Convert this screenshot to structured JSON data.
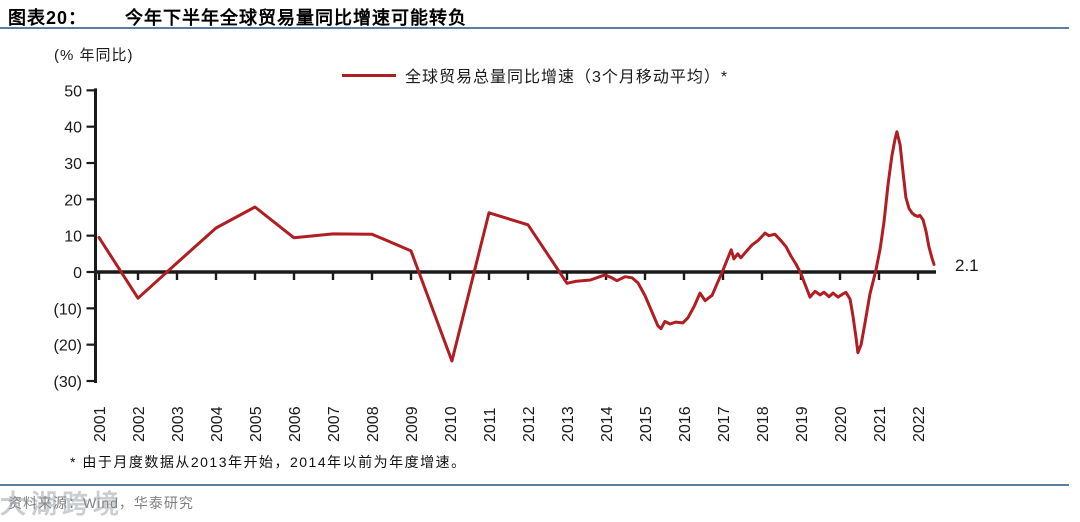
{
  "header": {
    "label": "图表20：",
    "title": "今年下半年全球贸易量同比增速可能转负"
  },
  "axis_unit": "(% 年同比)",
  "legend": {
    "label": "全球贸易总量同比增速（3个月移动平均）*"
  },
  "footnote": "* 由于月度数据从2013年开始，2014年以前为年度增速。",
  "source": "资料来源：Wind，华泰研究",
  "watermark": "大湖跨境",
  "colors": {
    "line": "#B01E23",
    "axis": "#1A1A1A",
    "rule": "#5B7FA3",
    "source_text": "#7F7F7F"
  },
  "chart_data": {
    "type": "line",
    "title": "今年下半年全球贸易量同比增速可能转负",
    "ylabel": "(% 年同比)",
    "ylim": [
      -30,
      50
    ],
    "grid": false,
    "legend_position": "top-center",
    "yticks": [
      {
        "v": 50,
        "label": "50"
      },
      {
        "v": 40,
        "label": "40"
      },
      {
        "v": 30,
        "label": "30"
      },
      {
        "v": 20,
        "label": "20"
      },
      {
        "v": 10,
        "label": "10"
      },
      {
        "v": 0,
        "label": "0"
      },
      {
        "v": -10,
        "label": "(10)"
      },
      {
        "v": -20,
        "label": "(20)"
      },
      {
        "v": -30,
        "label": "(30)"
      }
    ],
    "x_years": [
      2001,
      2002,
      2003,
      2004,
      2005,
      2006,
      2007,
      2008,
      2009,
      2010,
      2011,
      2012,
      2013,
      2014,
      2015,
      2016,
      2017,
      2018,
      2019,
      2020,
      2021,
      2022
    ],
    "end_label": "2.1",
    "series": [
      {
        "name": "全球贸易总量同比增速（3个月移动平均）*",
        "color": "#B01E23",
        "points": [
          [
            2001.0,
            9.5
          ],
          [
            2002.0,
            -7.2
          ],
          [
            2003.0,
            2.5
          ],
          [
            2004.0,
            12.1
          ],
          [
            2005.0,
            17.9
          ],
          [
            2006.0,
            9.4
          ],
          [
            2007.0,
            10.5
          ],
          [
            2008.0,
            10.4
          ],
          [
            2009.0,
            5.8
          ],
          [
            2010.05,
            -24.5
          ],
          [
            2011.0,
            16.3
          ],
          [
            2012.0,
            13.0
          ],
          [
            2013.0,
            -3.1
          ],
          [
            2013.21,
            -2.6
          ],
          [
            2013.6,
            -2.2
          ],
          [
            2013.97,
            -0.8
          ],
          [
            2014.15,
            -1.6
          ],
          [
            2014.28,
            -2.4
          ],
          [
            2014.49,
            -1.3
          ],
          [
            2014.67,
            -1.6
          ],
          [
            2014.82,
            -3.0
          ],
          [
            2015.0,
            -6.5
          ],
          [
            2015.18,
            -11.0
          ],
          [
            2015.33,
            -14.8
          ],
          [
            2015.41,
            -15.6
          ],
          [
            2015.51,
            -13.6
          ],
          [
            2015.64,
            -14.3
          ],
          [
            2015.79,
            -13.8
          ],
          [
            2015.97,
            -14.0
          ],
          [
            2016.1,
            -12.6
          ],
          [
            2016.26,
            -9.5
          ],
          [
            2016.41,
            -5.8
          ],
          [
            2016.54,
            -7.9
          ],
          [
            2016.72,
            -6.4
          ],
          [
            2016.87,
            -2.7
          ],
          [
            2017.0,
            0.5
          ],
          [
            2017.1,
            3.2
          ],
          [
            2017.21,
            6.1
          ],
          [
            2017.28,
            3.6
          ],
          [
            2017.38,
            5.0
          ],
          [
            2017.46,
            3.9
          ],
          [
            2017.59,
            5.6
          ],
          [
            2017.74,
            7.4
          ],
          [
            2017.9,
            8.7
          ],
          [
            2018.08,
            10.7
          ],
          [
            2018.18,
            10.0
          ],
          [
            2018.33,
            10.4
          ],
          [
            2018.49,
            8.6
          ],
          [
            2018.62,
            6.9
          ],
          [
            2018.74,
            4.4
          ],
          [
            2018.87,
            2.2
          ],
          [
            2019.0,
            -0.5
          ],
          [
            2019.1,
            -3.3
          ],
          [
            2019.23,
            -6.9
          ],
          [
            2019.36,
            -5.3
          ],
          [
            2019.49,
            -6.3
          ],
          [
            2019.59,
            -5.6
          ],
          [
            2019.72,
            -6.8
          ],
          [
            2019.82,
            -5.8
          ],
          [
            2019.95,
            -6.9
          ],
          [
            2020.08,
            -6.0
          ],
          [
            2020.15,
            -5.6
          ],
          [
            2020.26,
            -7.5
          ],
          [
            2020.33,
            -12.0
          ],
          [
            2020.41,
            -18.0
          ],
          [
            2020.46,
            -22.2
          ],
          [
            2020.54,
            -20.0
          ],
          [
            2020.64,
            -14.0
          ],
          [
            2020.77,
            -6.0
          ],
          [
            2020.92,
            0.5
          ],
          [
            2021.03,
            6.5
          ],
          [
            2021.13,
            14.0
          ],
          [
            2021.23,
            24.0
          ],
          [
            2021.33,
            32.0
          ],
          [
            2021.41,
            36.5
          ],
          [
            2021.46,
            38.6
          ],
          [
            2021.54,
            35.0
          ],
          [
            2021.62,
            27.0
          ],
          [
            2021.69,
            20.5
          ],
          [
            2021.77,
            17.5
          ],
          [
            2021.85,
            16.2
          ],
          [
            2021.92,
            15.6
          ],
          [
            2022.0,
            15.3
          ],
          [
            2022.05,
            15.6
          ],
          [
            2022.13,
            14.3
          ],
          [
            2022.21,
            11.0
          ],
          [
            2022.28,
            7.0
          ],
          [
            2022.36,
            3.8
          ],
          [
            2022.41,
            2.1
          ]
        ]
      }
    ]
  }
}
